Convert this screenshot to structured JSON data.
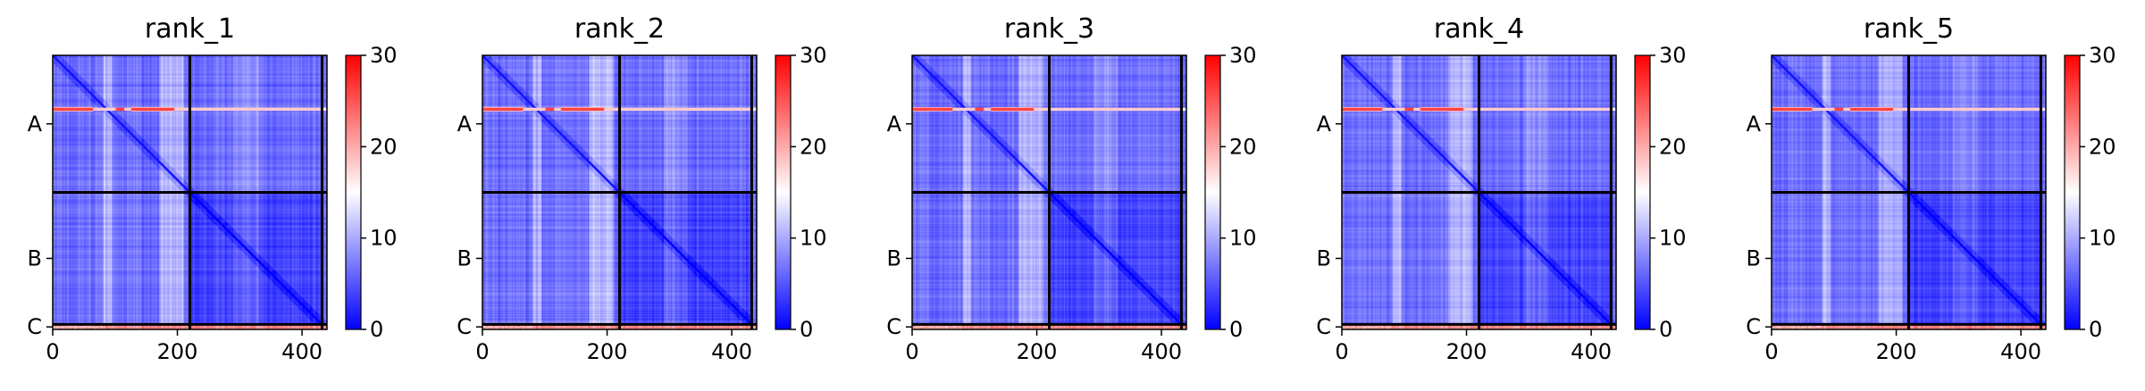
{
  "colors": {
    "low": "#0000ff",
    "mid": "#ffffff",
    "high": "#ff0000",
    "chain_border": "#000000"
  },
  "chart_data": [
    {
      "type": "heatmap",
      "title": "rank_1",
      "chains": [
        "A",
        "B",
        "C"
      ],
      "chain_boundaries": [
        0,
        220,
        432,
        440
      ],
      "x_ticks": [
        0,
        200,
        400
      ],
      "xlim": [
        0,
        440
      ],
      "colorbar": {
        "min": 0,
        "max": 30,
        "ticks": [
          0,
          10,
          20,
          30
        ]
      }
    },
    {
      "type": "heatmap",
      "title": "rank_2",
      "chains": [
        "A",
        "B",
        "C"
      ],
      "chain_boundaries": [
        0,
        220,
        432,
        440
      ],
      "x_ticks": [
        0,
        200,
        400
      ],
      "xlim": [
        0,
        440
      ],
      "colorbar": {
        "min": 0,
        "max": 30,
        "ticks": [
          0,
          10,
          20,
          30
        ]
      }
    },
    {
      "type": "heatmap",
      "title": "rank_3",
      "chains": [
        "A",
        "B",
        "C"
      ],
      "chain_boundaries": [
        0,
        220,
        432,
        440
      ],
      "x_ticks": [
        0,
        200,
        400
      ],
      "xlim": [
        0,
        440
      ],
      "colorbar": {
        "min": 0,
        "max": 30,
        "ticks": [
          0,
          10,
          20,
          30
        ]
      }
    },
    {
      "type": "heatmap",
      "title": "rank_4",
      "chains": [
        "A",
        "B",
        "C"
      ],
      "chain_boundaries": [
        0,
        220,
        432,
        440
      ],
      "x_ticks": [
        0,
        200,
        400
      ],
      "xlim": [
        0,
        440
      ],
      "colorbar": {
        "min": 0,
        "max": 30,
        "ticks": [
          0,
          10,
          20,
          30
        ]
      }
    },
    {
      "type": "heatmap",
      "title": "rank_5",
      "chains": [
        "A",
        "B",
        "C"
      ],
      "chain_boundaries": [
        0,
        220,
        432,
        440
      ],
      "x_ticks": [
        0,
        200,
        400
      ],
      "xlim": [
        0,
        440
      ],
      "colorbar": {
        "min": 0,
        "max": 30,
        "ticks": [
          0,
          10,
          20,
          30
        ]
      }
    }
  ]
}
